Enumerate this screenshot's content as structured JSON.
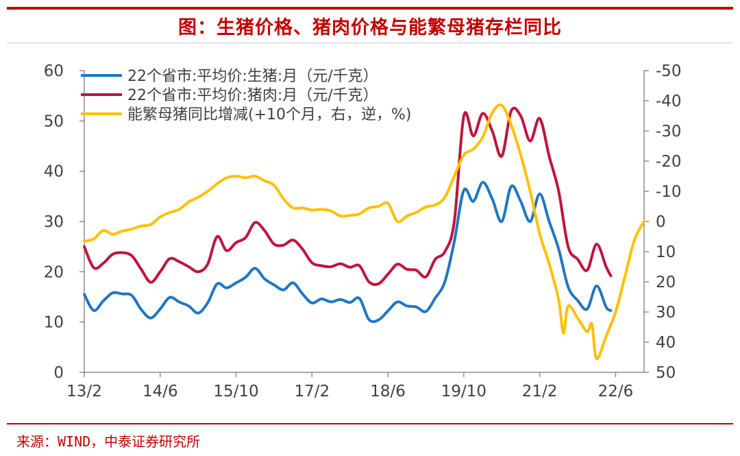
{
  "title": "图：生猪价格、猪肉价格与能繁母猪存栏同比",
  "source": "来源：WIND，中泰证券研究所",
  "chart_data": {
    "type": "line",
    "x_ticks": [
      "13/2",
      "14/6",
      "15/10",
      "17/2",
      "18/6",
      "19/10",
      "21/2",
      "22/6"
    ],
    "x_range": [
      2013.083,
      2022.917
    ],
    "y_left": {
      "range": [
        0,
        60
      ],
      "ticks": [
        "0",
        "10",
        "20",
        "30",
        "40",
        "50",
        "60"
      ]
    },
    "y_right": {
      "range": [
        50,
        -50
      ],
      "reversed": true,
      "ticks": [
        "-50",
        "-40",
        "-30",
        "-20",
        "-10",
        "0",
        "10",
        "20",
        "30",
        "40",
        "50"
      ]
    },
    "grid": false,
    "legend_position": "top-left",
    "series": [
      {
        "name": "22个省市:平均价:生猪:月（元/千克）",
        "axis": "left",
        "color": "#1f77c4",
        "points": [
          [
            2013.083,
            15.5
          ],
          [
            2013.25,
            12.3
          ],
          [
            2013.417,
            14.2
          ],
          [
            2013.583,
            15.8
          ],
          [
            2013.75,
            15.6
          ],
          [
            2013.917,
            15.3
          ],
          [
            2014.083,
            12.5
          ],
          [
            2014.25,
            10.8
          ],
          [
            2014.417,
            12.6
          ],
          [
            2014.583,
            14.9
          ],
          [
            2014.75,
            14.0
          ],
          [
            2014.917,
            13.2
          ],
          [
            2015.083,
            11.8
          ],
          [
            2015.25,
            13.8
          ],
          [
            2015.417,
            17.6
          ],
          [
            2015.583,
            16.8
          ],
          [
            2015.75,
            17.8
          ],
          [
            2015.917,
            18.9
          ],
          [
            2016.083,
            20.7
          ],
          [
            2016.25,
            18.6
          ],
          [
            2016.417,
            17.4
          ],
          [
            2016.583,
            16.4
          ],
          [
            2016.75,
            17.8
          ],
          [
            2016.917,
            15.6
          ],
          [
            2017.083,
            13.8
          ],
          [
            2017.25,
            14.6
          ],
          [
            2017.417,
            14.0
          ],
          [
            2017.583,
            14.5
          ],
          [
            2017.75,
            13.9
          ],
          [
            2017.917,
            14.7
          ],
          [
            2018.083,
            10.5
          ],
          [
            2018.25,
            10.4
          ],
          [
            2018.417,
            12.2
          ],
          [
            2018.583,
            14.0
          ],
          [
            2018.75,
            13.2
          ],
          [
            2018.917,
            13.0
          ],
          [
            2019.083,
            12.1
          ],
          [
            2019.25,
            14.8
          ],
          [
            2019.417,
            18.0
          ],
          [
            2019.583,
            26.0
          ],
          [
            2019.75,
            36.2
          ],
          [
            2019.917,
            34.0
          ],
          [
            2020.083,
            37.8
          ],
          [
            2020.25,
            34.5
          ],
          [
            2020.417,
            30.0
          ],
          [
            2020.583,
            37.0
          ],
          [
            2020.75,
            34.0
          ],
          [
            2020.917,
            30.0
          ],
          [
            2021.083,
            35.5
          ],
          [
            2021.25,
            30.0
          ],
          [
            2021.417,
            24.5
          ],
          [
            2021.583,
            17.0
          ],
          [
            2021.75,
            14.3
          ],
          [
            2021.917,
            12.6
          ],
          [
            2022.083,
            17.2
          ],
          [
            2022.25,
            13.0
          ],
          [
            2022.333,
            12.3
          ]
        ]
      },
      {
        "name": "22个省市:平均价:猪肉:月（元/千克）",
        "axis": "left",
        "color": "#c0143c",
        "points": [
          [
            2013.083,
            25.0
          ],
          [
            2013.25,
            20.8
          ],
          [
            2013.417,
            21.7
          ],
          [
            2013.583,
            23.5
          ],
          [
            2013.75,
            23.8
          ],
          [
            2013.917,
            23.2
          ],
          [
            2014.083,
            20.5
          ],
          [
            2014.25,
            17.9
          ],
          [
            2014.417,
            20.0
          ],
          [
            2014.583,
            22.6
          ],
          [
            2014.75,
            22.0
          ],
          [
            2014.917,
            21.0
          ],
          [
            2015.083,
            20.0
          ],
          [
            2015.25,
            21.5
          ],
          [
            2015.417,
            27.0
          ],
          [
            2015.583,
            24.2
          ],
          [
            2015.75,
            25.8
          ],
          [
            2015.917,
            26.8
          ],
          [
            2016.083,
            29.8
          ],
          [
            2016.25,
            28.2
          ],
          [
            2016.417,
            25.5
          ],
          [
            2016.583,
            25.3
          ],
          [
            2016.75,
            26.3
          ],
          [
            2016.917,
            24.5
          ],
          [
            2017.083,
            21.8
          ],
          [
            2017.25,
            21.2
          ],
          [
            2017.417,
            21.0
          ],
          [
            2017.583,
            21.6
          ],
          [
            2017.75,
            20.9
          ],
          [
            2017.917,
            21.2
          ],
          [
            2018.083,
            18.0
          ],
          [
            2018.25,
            17.6
          ],
          [
            2018.417,
            19.5
          ],
          [
            2018.583,
            21.5
          ],
          [
            2018.75,
            20.5
          ],
          [
            2018.917,
            20.3
          ],
          [
            2019.083,
            19.0
          ],
          [
            2019.25,
            22.5
          ],
          [
            2019.417,
            24.0
          ],
          [
            2019.583,
            30.0
          ],
          [
            2019.75,
            51.0
          ],
          [
            2019.917,
            47.0
          ],
          [
            2020.083,
            51.5
          ],
          [
            2020.25,
            48.0
          ],
          [
            2020.417,
            43.0
          ],
          [
            2020.583,
            52.0
          ],
          [
            2020.75,
            51.0
          ],
          [
            2020.917,
            46.0
          ],
          [
            2021.083,
            50.5
          ],
          [
            2021.25,
            43.0
          ],
          [
            2021.417,
            36.0
          ],
          [
            2021.583,
            25.0
          ],
          [
            2021.75,
            22.5
          ],
          [
            2021.917,
            20.3
          ],
          [
            2022.083,
            25.5
          ],
          [
            2022.25,
            21.0
          ],
          [
            2022.333,
            19.2
          ]
        ]
      },
      {
        "name": "能繁母猪同比增减(+10个月，右，逆，%)",
        "axis": "right",
        "color": "#ffc000",
        "points": [
          [
            2013.083,
            6.5
          ],
          [
            2013.25,
            5.8
          ],
          [
            2013.417,
            3.0
          ],
          [
            2013.583,
            4.2
          ],
          [
            2013.75,
            3.2
          ],
          [
            2013.917,
            2.5
          ],
          [
            2014.083,
            1.5
          ],
          [
            2014.25,
            1.0
          ],
          [
            2014.417,
            -1.5
          ],
          [
            2014.583,
            -3.0
          ],
          [
            2014.75,
            -4.0
          ],
          [
            2014.917,
            -6.5
          ],
          [
            2015.083,
            -8.0
          ],
          [
            2015.25,
            -10.0
          ],
          [
            2015.417,
            -12.5
          ],
          [
            2015.583,
            -14.5
          ],
          [
            2015.75,
            -15.0
          ],
          [
            2015.917,
            -14.5
          ],
          [
            2016.083,
            -15.0
          ],
          [
            2016.25,
            -13.5
          ],
          [
            2016.417,
            -12.0
          ],
          [
            2016.583,
            -7.5
          ],
          [
            2016.75,
            -4.5
          ],
          [
            2016.917,
            -4.5
          ],
          [
            2017.083,
            -3.8
          ],
          [
            2017.25,
            -4.0
          ],
          [
            2017.417,
            -3.5
          ],
          [
            2017.583,
            -1.8
          ],
          [
            2017.75,
            -2.0
          ],
          [
            2017.917,
            -2.5
          ],
          [
            2018.083,
            -4.5
          ],
          [
            2018.25,
            -5.0
          ],
          [
            2018.417,
            -6.0
          ],
          [
            2018.583,
            0.0
          ],
          [
            2018.75,
            -1.8
          ],
          [
            2018.917,
            -3.0
          ],
          [
            2019.083,
            -4.8
          ],
          [
            2019.25,
            -5.5
          ],
          [
            2019.417,
            -8.0
          ],
          [
            2019.583,
            -15.0
          ],
          [
            2019.75,
            -22.0
          ],
          [
            2019.917,
            -24.0
          ],
          [
            2020.083,
            -28.0
          ],
          [
            2020.25,
            -36.0
          ],
          [
            2020.417,
            -38.5
          ],
          [
            2020.583,
            -32.0
          ],
          [
            2020.75,
            -22.0
          ],
          [
            2020.917,
            -10.0
          ],
          [
            2021.083,
            4.0
          ],
          [
            2021.25,
            14.0
          ],
          [
            2021.417,
            26.0
          ],
          [
            2021.5,
            37.0
          ],
          [
            2021.583,
            28.0
          ],
          [
            2021.75,
            32.0
          ],
          [
            2021.917,
            36.5
          ],
          [
            2022.0,
            34.0
          ],
          [
            2022.083,
            45.5
          ],
          [
            2022.25,
            38.0
          ],
          [
            2022.417,
            30.0
          ],
          [
            2022.583,
            18.0
          ],
          [
            2022.75,
            6.0
          ],
          [
            2022.917,
            0.0
          ]
        ]
      }
    ]
  }
}
